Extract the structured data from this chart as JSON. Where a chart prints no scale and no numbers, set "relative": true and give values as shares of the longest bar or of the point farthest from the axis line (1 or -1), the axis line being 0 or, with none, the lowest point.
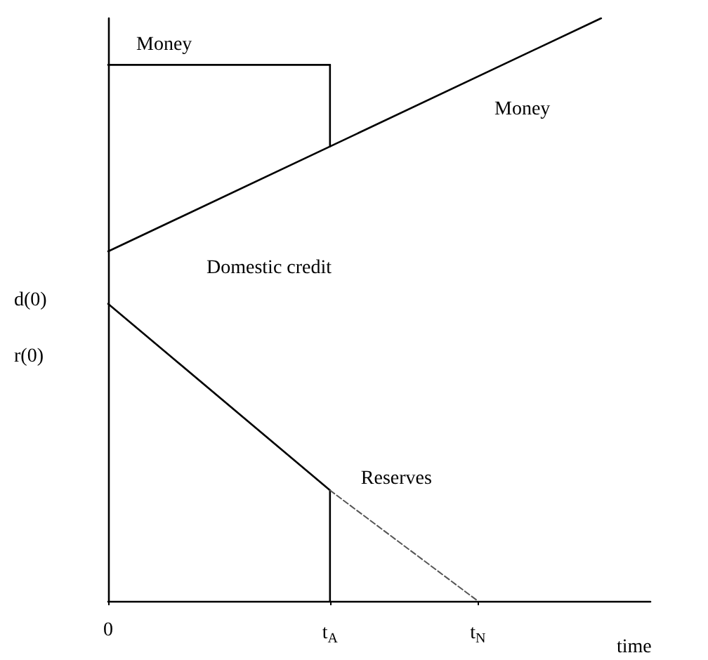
{
  "chart_data": {
    "type": "line",
    "relative": true,
    "xlabel": "time",
    "marker": "none",
    "categories": [
      "0",
      null,
      null,
      null,
      null,
      null,
      null,
      null,
      null,
      "t$_{A}$",
      null,
      null,
      null,
      null,
      null,
      "t$_{N}$",
      null,
      null,
      null,
      null,
      null,
      null,
      null
    ],
    "series": [
      {
        "name": "Money",
        "color": "#000000",
        "values": [
          0.92,
          null,
          null,
          null,
          null,
          null,
          null,
          null,
          null,
          0.92,
          null,
          null,
          null,
          null,
          null,
          null,
          null,
          null,
          null,
          null,
          null,
          null,
          null
        ]
      },
      {
        "color": "#000000",
        "x": [
          "t$_{A}$",
          "t$_{A}$"
        ],
        "values": [
          0.92,
          0.78
        ]
      },
      {
        "name": "Domestic credit",
        "color": "#000000",
        "values": [
          0.6,
          null,
          null,
          null,
          null,
          null,
          null,
          null,
          null,
          0.78,
          null,
          null,
          null,
          null,
          null,
          null,
          null,
          null,
          null,
          null,
          1.0,
          null,
          null
        ]
      },
      {
        "name": "Reserves",
        "color": "#000000",
        "values": [
          0.51,
          null,
          null,
          null,
          null,
          null,
          null,
          null,
          null,
          0.19,
          null,
          null,
          null,
          null,
          null,
          null,
          null,
          null,
          null,
          null,
          null,
          null,
          null
        ]
      },
      {
        "color": "#000000",
        "x": [
          "t$_{A}$",
          "t$_{A}$"
        ],
        "values": [
          0.19,
          0
        ]
      },
      {
        "color": "#555555",
        "line_style": "dashed",
        "values": [
          null,
          null,
          null,
          null,
          null,
          null,
          null,
          null,
          null,
          0.19,
          null,
          null,
          null,
          null,
          null,
          0,
          null,
          null,
          null,
          null,
          null,
          null,
          null
        ]
      }
    ],
    "annotations": [
      "Money",
      "d(0)",
      "r(0)"
    ]
  }
}
